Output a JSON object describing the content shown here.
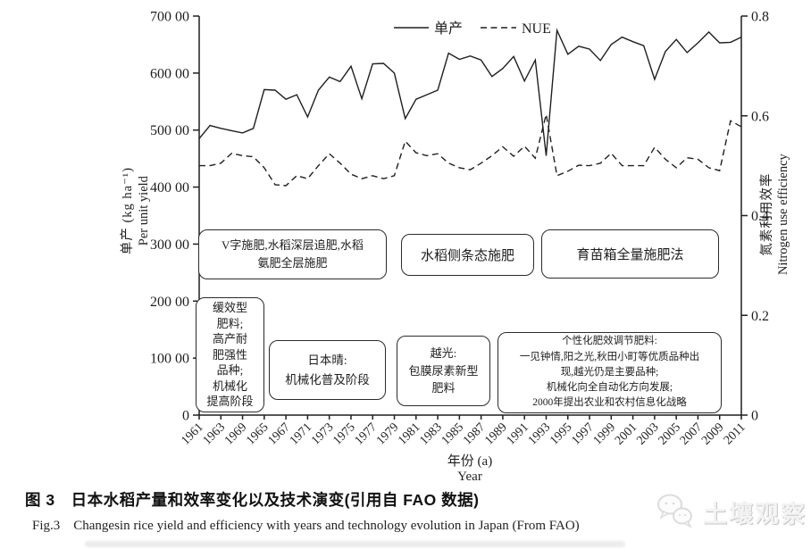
{
  "figure": {
    "legend": {
      "series1": "单产",
      "series2": "NUE"
    },
    "y_left_axis": {
      "tick_labels": [
        "0",
        "100 00",
        "200 00",
        "300 00",
        "400 00",
        "500 00",
        "600 00",
        "700 00"
      ],
      "title_zh": "单产 (kg ha⁻¹)",
      "title_en": "Per unit yield"
    },
    "y_right_axis": {
      "tick_labels": [
        "0",
        "0.2",
        "0.4",
        "0.6",
        "0.8"
      ],
      "title_zh": "氮素利用效率",
      "title_en": "Nitrogen use efficiency"
    },
    "x_axis": {
      "tick_labels": [
        "1961",
        "1963",
        "1969",
        "1965",
        "1967",
        "1971",
        "1973",
        "1975",
        "1977",
        "1979",
        "1981",
        "1983",
        "1985",
        "1987",
        "1989",
        "1991",
        "1993",
        "1995",
        "1997",
        "1999",
        "2001",
        "2003",
        "2005",
        "2007",
        "2009",
        "2011"
      ],
      "title_zh": "年份 (a)",
      "title_en": "Year"
    },
    "annotations": {
      "box_v": "V字施肥,水稻深层追肥,水稻\n氨肥全层施肥",
      "box_side": "水稻侧条态施肥",
      "box_nursery": "育苗箱全量施肥法",
      "box_slow": "缓效型\n肥料;\n高产耐\n肥强性\n品种;\n机械化\n提高阶段",
      "box_nipponbare": "日本晴:\n机械化普及阶段",
      "box_koshihikari": "越光:\n包膜尿素新型\n肥料",
      "box_personalized": "个性化肥效调节肥料:\n一见钟情,阳之光,秋田小町等优质品种出\n现,越光仍是主要品种;\n机械化向全自动化方向发展;\n2000年提出农业和农村信息化战略"
    }
  },
  "chart_data": {
    "type": "line",
    "title": "",
    "x": [
      1961,
      1962,
      1963,
      1964,
      1965,
      1966,
      1967,
      1968,
      1969,
      1970,
      1971,
      1972,
      1973,
      1974,
      1975,
      1976,
      1977,
      1978,
      1979,
      1980,
      1981,
      1982,
      1983,
      1984,
      1985,
      1986,
      1987,
      1988,
      1989,
      1990,
      1991,
      1992,
      1993,
      1994,
      1995,
      1996,
      1997,
      1998,
      1999,
      2000,
      2001,
      2002,
      2003,
      2004,
      2005,
      2006,
      2007,
      2008,
      2009,
      2010,
      2011
    ],
    "series": [
      {
        "name": "单产",
        "style": "solid",
        "axis": "left",
        "values": [
          48500,
          50800,
          50300,
          49900,
          49500,
          50300,
          57100,
          57000,
          55400,
          56200,
          52300,
          57000,
          59300,
          58500,
          61200,
          55500,
          61600,
          61700,
          60000,
          52000,
          55400,
          56200,
          57000,
          63500,
          62400,
          63000,
          62300,
          59400,
          60800,
          62900,
          58600,
          62300,
          45500,
          67500,
          63300,
          64700,
          64200,
          62200,
          65000,
          66300,
          65500,
          64800,
          58900,
          63800,
          65900,
          63600,
          65300,
          67200,
          65300,
          65400,
          66300
        ]
      },
      {
        "name": "NUE",
        "style": "dashed",
        "axis": "right",
        "values": [
          0.5,
          0.5,
          0.505,
          0.525,
          0.52,
          0.518,
          0.496,
          0.462,
          0.46,
          0.48,
          0.474,
          0.5,
          0.524,
          0.505,
          0.483,
          0.474,
          0.48,
          0.474,
          0.48,
          0.549,
          0.526,
          0.52,
          0.524,
          0.505,
          0.496,
          0.492,
          0.505,
          0.52,
          0.538,
          0.519,
          0.539,
          0.515,
          0.603,
          0.48,
          0.489,
          0.501,
          0.5,
          0.505,
          0.525,
          0.5,
          0.5,
          0.5,
          0.537,
          0.513,
          0.496,
          0.516,
          0.513,
          0.496,
          0.49,
          0.59,
          0.578
        ]
      }
    ],
    "left_ylim": [
      0,
      70000
    ],
    "right_ylim": [
      0,
      0.8
    ],
    "xlabel": "年份 (a) / Year",
    "ylabel_left": "单产 (kg ha⁻¹) Per unit yield",
    "ylabel_right": "氮素利用效率 Nitrogen use efficiency",
    "grid": false,
    "legend_position": "top-center",
    "line_color": "#1f1f1f"
  },
  "caption": {
    "zh": "图 3　日本水稻产量和效率变化以及技术演变(引用自 FAO 数据)",
    "en": "Fig.3　Changesin rice yield and efficiency with years and technology evolution in Japan (From FAO)"
  },
  "watermark": {
    "text": "土壤观察",
    "icon": "chat-bubbles-icon"
  }
}
